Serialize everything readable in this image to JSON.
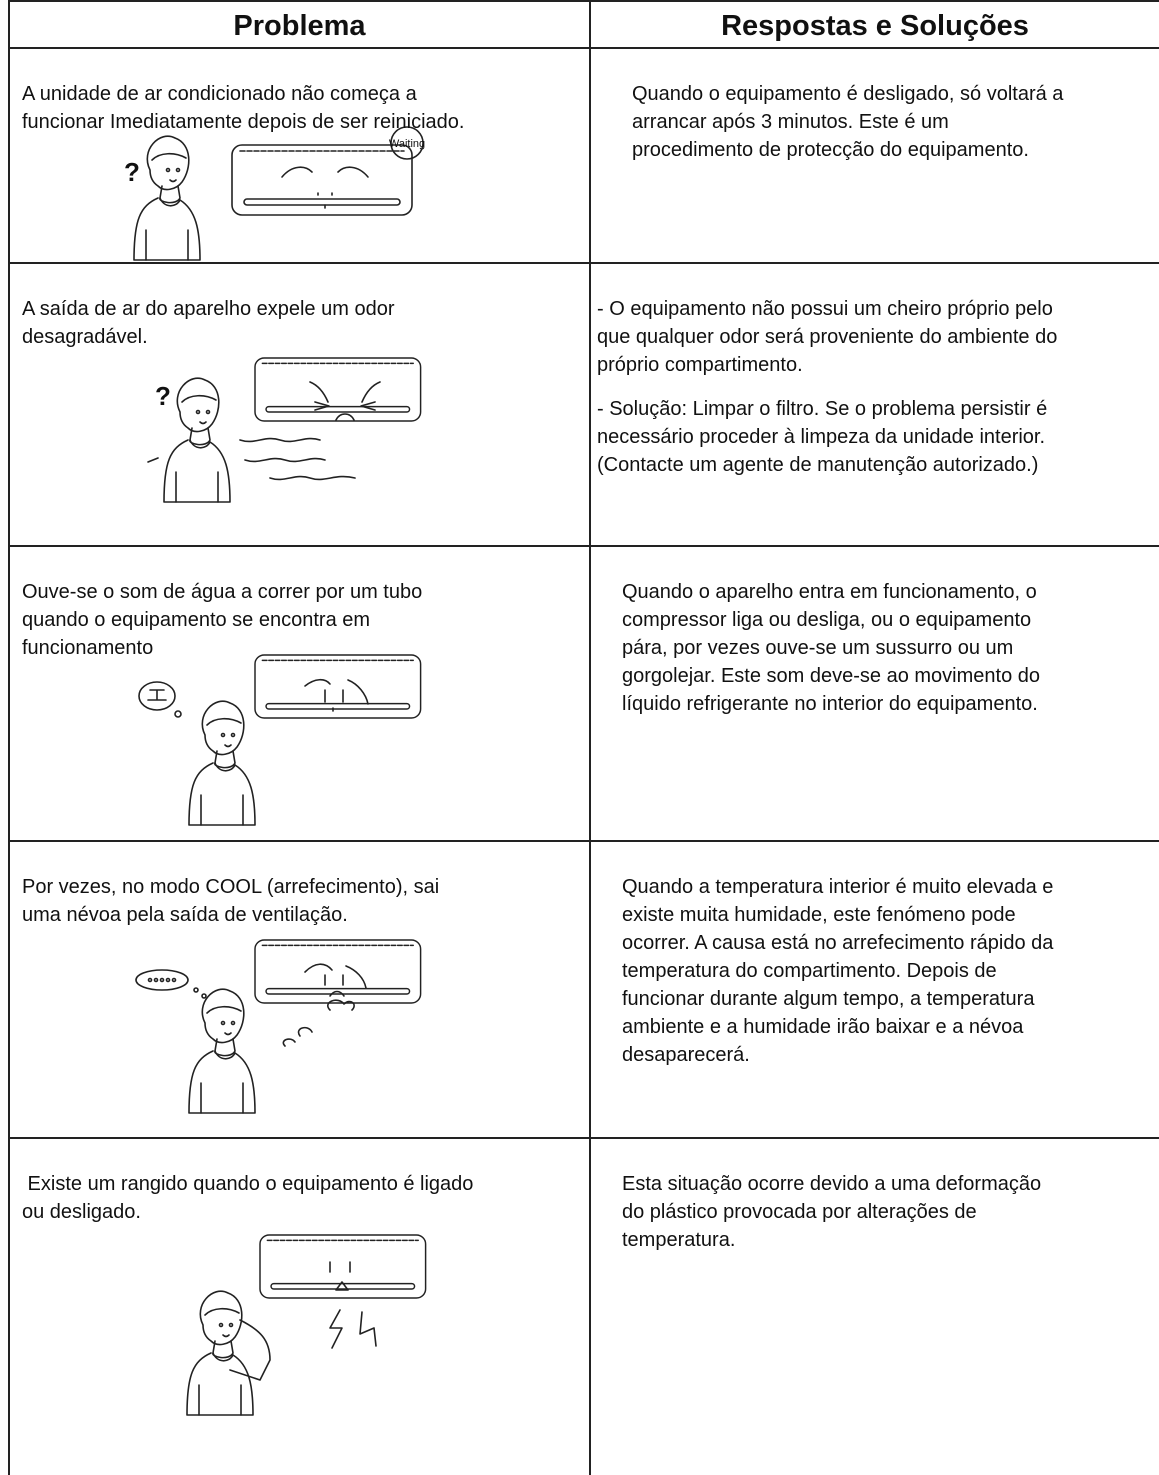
{
  "header": {
    "problem": "Problema",
    "solution": "Respostas e Soluções"
  },
  "rows": [
    {
      "problem": [
        "A unidade de ar condicionado não começa a",
        "funcionar Imediatamente depois de ser reiniciado."
      ],
      "solution": [
        [
          "Quando o equipamento é desligado, só voltará a",
          "arrancar após 3 minutos. Este é um",
          "procedimento de protecção do equipamento."
        ]
      ],
      "labels": [
        "?",
        "Waiting"
      ]
    },
    {
      "problem": [
        "A saída de ar do aparelho expele um odor",
        "desagradável."
      ],
      "solution": [
        [
          "- O equipamento não possui um cheiro próprio pelo",
          "que qualquer odor será proveniente do ambiente do",
          "próprio compartimento."
        ],
        [
          "- Solução: Limpar o filtro. Se o problema persistir é",
          "necessário proceder à limpeza da unidade interior.",
          "(Contacte um agente de manutenção autorizado.)"
        ]
      ],
      "labels": [
        "?"
      ]
    },
    {
      "problem": [
        "Ouve-se o som de água a correr por um tubo",
        "quando o equipamento se encontra em",
        "funcionamento"
      ],
      "solution": [
        [
          "Quando o aparelho entra em funcionamento, o",
          "compressor liga ou desliga, ou o equipamento",
          "pára, por vezes ouve-se um sussurro ou um",
          "gorgolejar. Este som deve-se ao movimento do",
          "líquido refrigerante no interior do equipamento."
        ]
      ]
    },
    {
      "problem": [
        "Por vezes, no modo COOL (arrefecimento), sai",
        "uma névoa pela saída de ventilação."
      ],
      "solution": [
        [
          "Quando a temperatura interior é muito elevada e",
          "existe muita humidade, este fenómeno pode",
          "ocorrer. A causa está no arrefecimento rápido da",
          "temperatura do compartimento. Depois de",
          "funcionar durante algum tempo, a temperatura",
          "ambiente e a humidade irão baixar e a névoa",
          "desaparecerá."
        ]
      ]
    },
    {
      "problem": [
        " Existe um rangido quando o equipamento é ligado",
        "ou desligado."
      ],
      "solution": [
        [
          "Esta situação ocorre devido a uma deformação",
          "do plástico provocada por alterações de",
          "temperatura."
        ]
      ]
    }
  ]
}
